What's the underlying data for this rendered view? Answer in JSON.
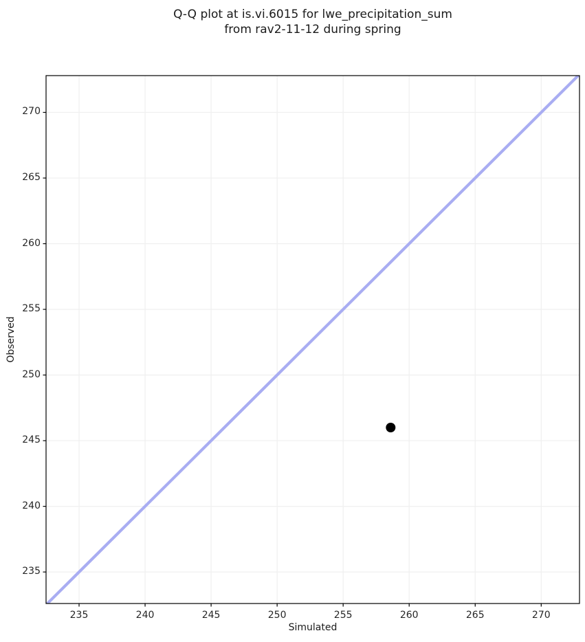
{
  "chart_data": {
    "type": "scatter",
    "title": "Q-Q plot at is.vi.6015 for lwe_precipitation_sum\nfrom rav2-11-12 during spring",
    "xlabel": "Simulated",
    "ylabel": "Observed",
    "xlim": [
      232.5,
      272.9
    ],
    "ylim": [
      232.6,
      272.8
    ],
    "x_ticks": [
      235,
      240,
      245,
      250,
      255,
      260,
      265,
      270
    ],
    "y_ticks": [
      235,
      240,
      245,
      250,
      255,
      260,
      265,
      270
    ],
    "grid": true,
    "legend": false,
    "points": [
      {
        "x": 258.6,
        "y": 246.0
      }
    ],
    "reference_line": {
      "kind": "identity",
      "from": 232.0,
      "to": 273.5
    },
    "colors": {
      "point": "#000000",
      "reference_line": "#a9adf2",
      "grid": "#f0f0f0",
      "spine": "#000000",
      "text": "#262626"
    }
  }
}
